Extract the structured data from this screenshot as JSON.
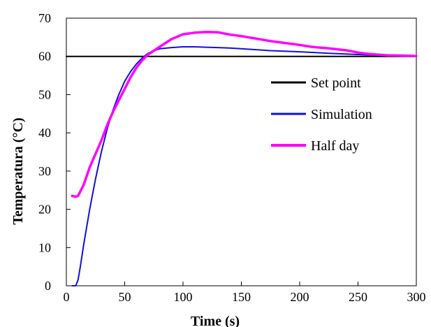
{
  "chart_data": {
    "type": "line",
    "title": "",
    "xlabel": "Time (s)",
    "ylabel": "Temperatura (°C)",
    "xlim": [
      0,
      300
    ],
    "ylim": [
      0,
      70
    ],
    "xticks": [
      0,
      50,
      100,
      150,
      200,
      250,
      300
    ],
    "yticks": [
      0,
      10,
      20,
      30,
      40,
      50,
      60,
      70
    ],
    "grid": false,
    "legend_position": "right",
    "series": [
      {
        "name": "Set point",
        "color": "#000000",
        "x": [
          0,
          300
        ],
        "y": [
          60,
          60
        ]
      },
      {
        "name": "Simulation",
        "color": "#1010e0",
        "x": [
          5,
          8,
          10,
          12,
          15,
          20,
          25,
          30,
          35,
          40,
          45,
          50,
          55,
          60,
          65,
          70,
          75,
          80,
          90,
          100,
          110,
          120,
          130,
          140,
          150,
          175,
          200,
          225,
          250,
          275,
          300
        ],
        "y": [
          0,
          0,
          1.5,
          5,
          11,
          20,
          28,
          35,
          41,
          46,
          50,
          53.5,
          56,
          58,
          59.6,
          60.8,
          61.5,
          62,
          62.3,
          62.5,
          62.5,
          62.4,
          62.3,
          62.2,
          62.0,
          61.5,
          61.2,
          60.8,
          60.5,
          60.2,
          60.0
        ]
      },
      {
        "name": "Half day",
        "color": "#ff00ff",
        "x": [
          5,
          8,
          10,
          15,
          20,
          25,
          30,
          35,
          40,
          45,
          50,
          55,
          60,
          65,
          70,
          75,
          80,
          90,
          100,
          110,
          120,
          130,
          140,
          150,
          160,
          175,
          190,
          200,
          210,
          225,
          240,
          250,
          260,
          275,
          290,
          300
        ],
        "y": [
          23.5,
          23.3,
          23.5,
          26.5,
          31,
          34.5,
          38,
          42,
          45.5,
          48.5,
          51.5,
          54.5,
          57,
          59,
          60.5,
          61.5,
          62.5,
          64.5,
          65.8,
          66.2,
          66.4,
          66.3,
          65.7,
          65.3,
          64.8,
          64.0,
          63.4,
          63.0,
          62.5,
          62.1,
          61.6,
          61.0,
          60.6,
          60.3,
          60.2,
          60.1
        ]
      }
    ]
  }
}
